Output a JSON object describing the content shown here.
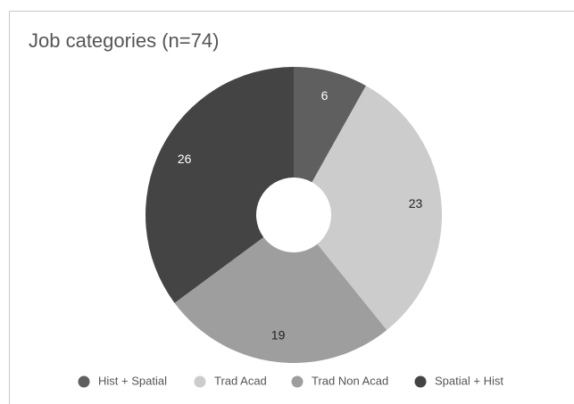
{
  "chart_data": {
    "type": "pie",
    "title": "Job categories (n=74)",
    "categories": [
      "Hist + Spatial",
      "Trad Acad",
      "Trad Non Acad",
      "Spatial + Hist"
    ],
    "values": [
      6,
      23,
      19,
      26
    ],
    "colors": [
      "#5f5f5f",
      "#cccccc",
      "#9e9e9e",
      "#444444"
    ],
    "donut": true,
    "legend": "bottom"
  }
}
